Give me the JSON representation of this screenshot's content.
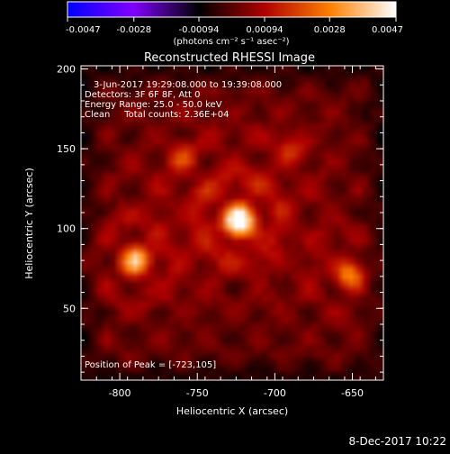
{
  "chart_data": {
    "type": "heatmap",
    "title": "Reconstructed RHESSI Image",
    "xlabel": "Heliocentric X (arcsec)",
    "ylabel": "Heliocentric Y (arcsec)",
    "xlim": [
      -825,
      -630
    ],
    "ylim": [
      5,
      202
    ],
    "x_ticks": [
      "-800",
      "-750",
      "-700",
      "-650"
    ],
    "x_tick_values": [
      -800,
      -750,
      -700,
      -650
    ],
    "y_ticks": [
      "50",
      "100",
      "150",
      "200"
    ],
    "y_tick_values": [
      50,
      100,
      150,
      200
    ],
    "annotations": [
      "3-Jun-2017 19:29:08.000 to 19:39:08.000",
      "Detectors: 3F 6F 8F, Att 0",
      "Energy Range: 25.0 - 50.0 keV",
      "Clean     Total counts: 2.36E+04"
    ],
    "peak_label": "Position of Peak = [-723,105]",
    "peak": [
      -723,
      105
    ],
    "sources": [
      {
        "x": -723,
        "y": 105,
        "peak": 0.0047
      },
      {
        "x": -790,
        "y": 80,
        "peak": 0.003
      },
      {
        "x": -652,
        "y": 71,
        "peak": 0.0022
      },
      {
        "x": -760,
        "y": 145,
        "peak": 0.0013
      },
      {
        "x": -690,
        "y": 150,
        "peak": 0.0011
      }
    ],
    "colorbar": {
      "range": [
        -0.0047,
        0.0047
      ],
      "tick_labels": [
        "-0.0047",
        "-0.0028",
        "-0.00094",
        "0.00094",
        "0.0028",
        "0.0047"
      ],
      "tick_values": [
        -0.0047,
        -0.0028,
        -0.00094,
        0.00094,
        0.0028,
        0.0047
      ],
      "units": "(photons cm⁻² s⁻¹ asec⁻²)",
      "colors": [
        "#0000ff",
        "#8000ff",
        "#000000",
        "#b00000",
        "#ff8000",
        "#ffffff"
      ]
    }
  },
  "footer": {
    "timestamp": "8-Dec-2017 10:22"
  }
}
